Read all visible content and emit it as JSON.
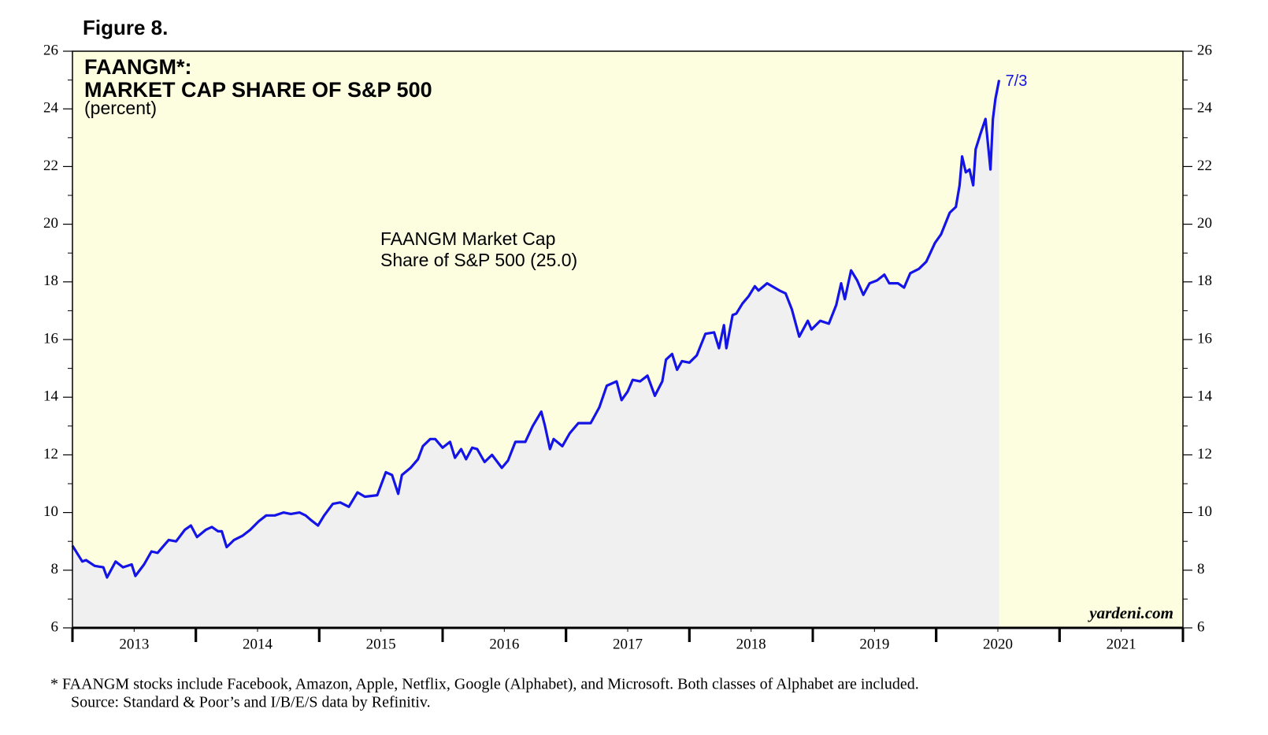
{
  "chart_data": {
    "type": "line",
    "figure_label": "Figure 8.",
    "title_lines": [
      "FAANGM*:",
      "MARKET CAP SHARE OF S&P 500"
    ],
    "unit_label": "(percent)",
    "annotation": [
      "FAANGM Market Cap",
      "Share of S&P 500 (25.0)"
    ],
    "end_label": "7/3",
    "source_mark": "yardeni.com",
    "footnotes": [
      "*  FAANGM stocks include Facebook, Amazon, Apple, Netflix, Google (Alphabet), and Microsoft. Both classes of Alphabet are included.",
      "Source: Standard & Poor’s and I/B/E/S data by Refinitiv."
    ],
    "plot_background": "#fdfde0",
    "area_color": "#f0f0f0",
    "x": [
      2013.0,
      2013.08,
      2013.11,
      2013.18,
      2013.25,
      2013.28,
      2013.35,
      2013.41,
      2013.48,
      2013.51,
      2013.58,
      2013.64,
      2013.69,
      2013.74,
      2013.78,
      2013.84,
      2013.91,
      2013.96,
      2014.01,
      2014.08,
      2014.13,
      2014.18,
      2014.21,
      2014.25,
      2014.31,
      2014.38,
      2014.44,
      2014.51,
      2014.57,
      2014.64,
      2014.71,
      2014.77,
      2014.84,
      2014.89,
      2014.93,
      2014.99,
      2015.04,
      2015.11,
      2015.17,
      2015.24,
      2015.31,
      2015.37,
      2015.47,
      2015.54,
      2015.59,
      2015.64,
      2015.67,
      2015.74,
      2015.8,
      2015.84,
      2015.9,
      2015.94,
      2016.0,
      2016.06,
      2016.1,
      2016.15,
      2016.19,
      2016.24,
      2016.28,
      2016.34,
      2016.4,
      2016.48,
      2016.53,
      2016.59,
      2016.67,
      2016.73,
      2016.8,
      2016.83,
      2016.87,
      2016.9,
      2016.97,
      2017.03,
      2017.1,
      2017.2,
      2017.27,
      2017.33,
      2017.41,
      2017.45,
      2017.5,
      2017.54,
      2017.6,
      2017.66,
      2017.72,
      2017.78,
      2017.81,
      2017.86,
      2017.9,
      2017.94,
      2018.0,
      2018.06,
      2018.13,
      2018.2,
      2018.24,
      2018.28,
      2018.3,
      2018.35,
      2018.38,
      2018.43,
      2018.48,
      2018.53,
      2018.56,
      2018.63,
      2018.69,
      2018.73,
      2018.78,
      2018.83,
      2018.89,
      2018.96,
      2018.99,
      2019.06,
      2019.13,
      2019.19,
      2019.23,
      2019.26,
      2019.31,
      2019.36,
      2019.41,
      2019.46,
      2019.52,
      2019.58,
      2019.62,
      2019.69,
      2019.74,
      2019.79,
      2019.86,
      2019.92,
      2019.99,
      2020.04,
      2020.11,
      2020.16,
      2020.19,
      2020.21,
      2020.24,
      2020.27,
      2020.3,
      2020.32,
      2020.36,
      2020.4,
      2020.44,
      2020.46,
      2020.48,
      2020.51
    ],
    "series": [
      {
        "color": "#1414e6",
        "values": [
          8.85,
          8.3,
          8.35,
          8.15,
          8.1,
          7.75,
          8.3,
          8.1,
          8.2,
          7.8,
          8.2,
          8.65,
          8.6,
          8.85,
          9.05,
          9.0,
          9.4,
          9.55,
          9.15,
          9.4,
          9.5,
          9.35,
          9.35,
          8.8,
          9.05,
          9.2,
          9.4,
          9.7,
          9.9,
          9.9,
          10.0,
          9.95,
          10.0,
          9.9,
          9.75,
          9.55,
          9.9,
          10.3,
          10.35,
          10.2,
          10.7,
          10.55,
          10.6,
          11.4,
          11.3,
          10.65,
          11.3,
          11.55,
          11.85,
          12.3,
          12.55,
          12.55,
          12.25,
          12.45,
          11.9,
          12.2,
          11.85,
          12.25,
          12.2,
          11.75,
          12.0,
          11.55,
          11.8,
          12.45,
          12.45,
          13.0,
          13.5,
          13.0,
          12.2,
          12.55,
          12.3,
          12.75,
          13.1,
          13.1,
          13.65,
          14.4,
          14.55,
          13.9,
          14.2,
          14.6,
          14.55,
          14.75,
          14.05,
          14.55,
          15.3,
          15.5,
          14.95,
          15.25,
          15.2,
          15.45,
          16.2,
          16.25,
          15.7,
          16.5,
          15.7,
          16.85,
          16.9,
          17.25,
          17.5,
          17.85,
          17.7,
          17.95,
          17.8,
          17.7,
          17.6,
          17.05,
          16.1,
          16.65,
          16.35,
          16.65,
          16.55,
          17.2,
          17.95,
          17.4,
          18.4,
          18.05,
          17.55,
          17.95,
          18.05,
          18.25,
          17.95,
          17.95,
          17.8,
          18.3,
          18.45,
          18.7,
          19.35,
          19.65,
          20.4,
          20.6,
          21.35,
          22.35,
          21.8,
          21.9,
          21.35,
          22.6,
          23.15,
          23.65,
          21.9,
          23.65,
          24.35,
          25.0
        ]
      }
    ],
    "xlim": [
      2013,
      2022
    ],
    "xticks": [
      {
        "value": 2013.5,
        "label": "2013"
      },
      {
        "value": 2014.5,
        "label": "2014"
      },
      {
        "value": 2015.5,
        "label": "2015"
      },
      {
        "value": 2016.5,
        "label": "2016"
      },
      {
        "value": 2017.5,
        "label": "2017"
      },
      {
        "value": 2018.5,
        "label": "2018"
      },
      {
        "value": 2019.5,
        "label": "2019"
      },
      {
        "value": 2020.5,
        "label": "2020"
      },
      {
        "value": 2021.5,
        "label": "2021"
      }
    ],
    "ylim": [
      6,
      26
    ],
    "yticks": [
      6,
      8,
      10,
      12,
      14,
      16,
      18,
      20,
      22,
      24,
      26
    ],
    "y2lim": [
      6,
      26
    ],
    "y2ticks": [
      6,
      8,
      10,
      12,
      14,
      16,
      18,
      20,
      22,
      24,
      26
    ]
  }
}
